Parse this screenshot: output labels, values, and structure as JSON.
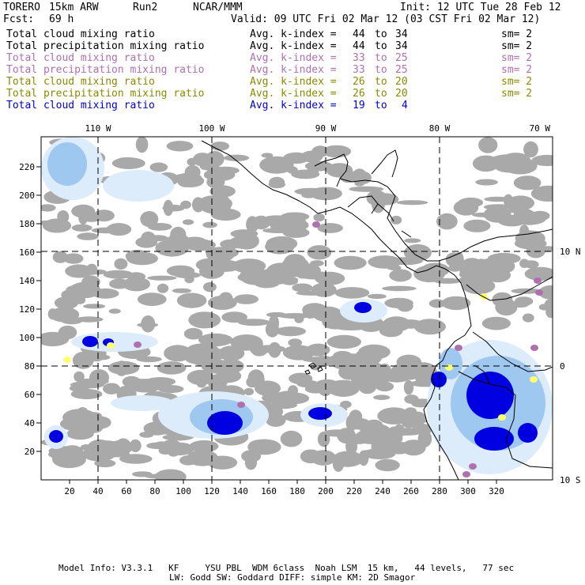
{
  "header": {
    "model": "TORERO",
    "resolution": "15km ARW",
    "run": "Run2",
    "org": "NCAR/MMM",
    "init": "Init: 12 UTC Tue 28 Feb 12",
    "fcst_label": "Fcst:",
    "fcst_value": "69 h",
    "valid": "Valid: 09 UTC Fri 02 Mar 12 (03 CST Fri 02 Mar 12)"
  },
  "fields": [
    {
      "name": "Total cloud mixing ratio",
      "avg": "Avg. k-index =",
      "from": "44",
      "to_word": "to",
      "to": "34",
      "sm": "sm= 2",
      "color": "#000000"
    },
    {
      "name": "Total precipitation mixing ratio",
      "avg": "Avg. k-index =",
      "from": "44",
      "to_word": "to",
      "to": "34",
      "sm": "sm= 2",
      "color": "#000000"
    },
    {
      "name": "Total cloud mixing ratio",
      "avg": "Avg. k-index =",
      "from": "33",
      "to_word": "to",
      "to": "25",
      "sm": "sm= 2",
      "color": "#b070b0"
    },
    {
      "name": "Total precipitation mixing ratio",
      "avg": "Avg. k-index =",
      "from": "33",
      "to_word": "to",
      "to": "25",
      "sm": "sm= 2",
      "color": "#b070b0"
    },
    {
      "name": "Total cloud mixing ratio",
      "avg": "Avg. k-index =",
      "from": "26",
      "to_word": "to",
      "to": "20",
      "sm": "sm= 2",
      "color": "#8a8a00"
    },
    {
      "name": "Total precipitation mixing ratio",
      "avg": "Avg. k-index =",
      "from": "26",
      "to_word": "to",
      "to": "20",
      "sm": "sm= 2",
      "color": "#8a8a00"
    },
    {
      "name": "Total cloud mixing ratio",
      "avg": "Avg. k-index =",
      "from": "19",
      "to_word": "to",
      "to": "4",
      "sm": "",
      "color": "#0000d0"
    }
  ],
  "map": {
    "lon_labels": [
      "110 W",
      "100 W",
      "90 W",
      "80 W",
      "70 W"
    ],
    "lat_labels": [
      "10 N",
      "0",
      "10 S"
    ],
    "x_ticks": [
      "20",
      "40",
      "60",
      "80",
      "100",
      "120",
      "140",
      "160",
      "180",
      "200",
      "220",
      "240",
      "260",
      "280",
      "300",
      "320"
    ],
    "y_ticks": [
      "20",
      "40",
      "60",
      "80",
      "100",
      "120",
      "140",
      "160",
      "180",
      "200",
      "220"
    ],
    "colors": {
      "cloud_gray": "#a9a9a9",
      "light_blue": "#dcecfb",
      "mid_blue": "#9ec8f0",
      "dark_blue": "#0000e0",
      "purple": "#b070b0",
      "yellow": "#ffff70"
    }
  },
  "footer": {
    "line1": "Model Info: V3.3.1   KF     YSU PBL  WDM 6class  Noah LSM  15 km,   44 levels,   77 sec",
    "line2": "LW: Godd SW: Goddard DIFF: simple KM: 2D Smagor"
  }
}
